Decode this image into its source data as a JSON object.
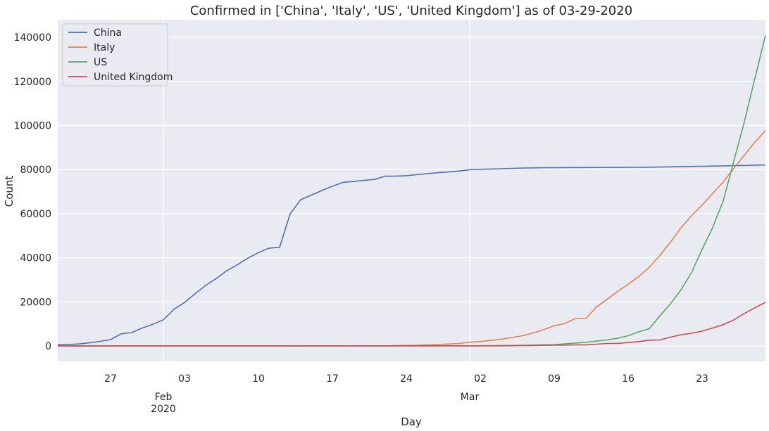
{
  "chart_data": {
    "type": "line",
    "title": "Confirmed in ['China', 'Italy', 'US', 'United Kingdom'] as of 03-29-2020",
    "xlabel": "Day",
    "ylabel": "Count",
    "x_range": [
      "2020-01-22",
      "2020-03-29"
    ],
    "ylim": [
      -7000,
      148000
    ],
    "yticks": [
      0,
      20000,
      40000,
      60000,
      80000,
      100000,
      120000,
      140000
    ],
    "xticks": [
      {
        "date": "2020-01-27",
        "label": "27"
      },
      {
        "date": "2020-02-01",
        "label": "Feb\n2020"
      },
      {
        "date": "2020-02-03",
        "label": "03"
      },
      {
        "date": "2020-02-10",
        "label": "10"
      },
      {
        "date": "2020-02-17",
        "label": "17"
      },
      {
        "date": "2020-02-24",
        "label": "24"
      },
      {
        "date": "2020-03-01",
        "label": "Mar"
      },
      {
        "date": "2020-03-02",
        "label": "02"
      },
      {
        "date": "2020-03-09",
        "label": "09"
      },
      {
        "date": "2020-03-16",
        "label": "16"
      },
      {
        "date": "2020-03-23",
        "label": "23"
      }
    ],
    "grid": true,
    "legend_position": "top-left",
    "series": [
      {
        "name": "China",
        "color": "#4c72b0",
        "points": [
          [
            "2020-01-22",
            548
          ],
          [
            "2020-01-23",
            643
          ],
          [
            "2020-01-24",
            920
          ],
          [
            "2020-01-25",
            1406
          ],
          [
            "2020-01-26",
            2075
          ],
          [
            "2020-01-27",
            2877
          ],
          [
            "2020-01-28",
            5509
          ],
          [
            "2020-01-29",
            6087
          ],
          [
            "2020-01-30",
            8141
          ],
          [
            "2020-01-31",
            9802
          ],
          [
            "2020-02-01",
            11891
          ],
          [
            "2020-02-02",
            16630
          ],
          [
            "2020-02-03",
            19716
          ],
          [
            "2020-02-04",
            23707
          ],
          [
            "2020-02-05",
            27440
          ],
          [
            "2020-02-06",
            30587
          ],
          [
            "2020-02-07",
            34110
          ],
          [
            "2020-02-08",
            36814
          ],
          [
            "2020-02-09",
            39829
          ],
          [
            "2020-02-10",
            42354
          ],
          [
            "2020-02-11",
            44386
          ],
          [
            "2020-02-12",
            44759
          ],
          [
            "2020-02-13",
            59895
          ],
          [
            "2020-02-14",
            66358
          ],
          [
            "2020-02-15",
            68413
          ],
          [
            "2020-02-16",
            70513
          ],
          [
            "2020-02-17",
            72434
          ],
          [
            "2020-02-18",
            74211
          ],
          [
            "2020-02-19",
            74619
          ],
          [
            "2020-02-20",
            75077
          ],
          [
            "2020-02-21",
            75550
          ],
          [
            "2020-02-22",
            77001
          ],
          [
            "2020-02-23",
            77022
          ],
          [
            "2020-02-24",
            77241
          ],
          [
            "2020-02-25",
            77754
          ],
          [
            "2020-02-26",
            78166
          ],
          [
            "2020-02-27",
            78600
          ],
          [
            "2020-02-28",
            78928
          ],
          [
            "2020-02-29",
            79356
          ],
          [
            "2020-03-01",
            79932
          ],
          [
            "2020-03-02",
            80136
          ],
          [
            "2020-03-03",
            80261
          ],
          [
            "2020-03-04",
            80386
          ],
          [
            "2020-03-05",
            80537
          ],
          [
            "2020-03-06",
            80690
          ],
          [
            "2020-03-07",
            80770
          ],
          [
            "2020-03-08",
            80823
          ],
          [
            "2020-03-09",
            80860
          ],
          [
            "2020-03-10",
            80887
          ],
          [
            "2020-03-11",
            80921
          ],
          [
            "2020-03-12",
            80932
          ],
          [
            "2020-03-13",
            80945
          ],
          [
            "2020-03-14",
            80977
          ],
          [
            "2020-03-15",
            81003
          ],
          [
            "2020-03-16",
            81033
          ],
          [
            "2020-03-17",
            81058
          ],
          [
            "2020-03-18",
            81102
          ],
          [
            "2020-03-19",
            81156
          ],
          [
            "2020-03-20",
            81250
          ],
          [
            "2020-03-21",
            81305
          ],
          [
            "2020-03-22",
            81435
          ],
          [
            "2020-03-23",
            81498
          ],
          [
            "2020-03-24",
            81591
          ],
          [
            "2020-03-25",
            81661
          ],
          [
            "2020-03-26",
            81782
          ],
          [
            "2020-03-27",
            81897
          ],
          [
            "2020-03-28",
            81999
          ],
          [
            "2020-03-29",
            82122
          ]
        ]
      },
      {
        "name": "Italy",
        "color": "#dd8452",
        "points": [
          [
            "2020-01-22",
            0
          ],
          [
            "2020-01-31",
            2
          ],
          [
            "2020-02-06",
            3
          ],
          [
            "2020-02-21",
            20
          ],
          [
            "2020-02-22",
            62
          ],
          [
            "2020-02-23",
            155
          ],
          [
            "2020-02-24",
            229
          ],
          [
            "2020-02-25",
            322
          ],
          [
            "2020-02-26",
            453
          ],
          [
            "2020-02-27",
            655
          ],
          [
            "2020-02-28",
            888
          ],
          [
            "2020-02-29",
            1128
          ],
          [
            "2020-03-01",
            1694
          ],
          [
            "2020-03-02",
            2036
          ],
          [
            "2020-03-03",
            2502
          ],
          [
            "2020-03-04",
            3089
          ],
          [
            "2020-03-05",
            3858
          ],
          [
            "2020-03-06",
            4636
          ],
          [
            "2020-03-07",
            5883
          ],
          [
            "2020-03-08",
            7375
          ],
          [
            "2020-03-09",
            9172
          ],
          [
            "2020-03-10",
            10149
          ],
          [
            "2020-03-11",
            12462
          ],
          [
            "2020-03-12",
            12462
          ],
          [
            "2020-03-13",
            17660
          ],
          [
            "2020-03-14",
            21157
          ],
          [
            "2020-03-15",
            24747
          ],
          [
            "2020-03-16",
            27980
          ],
          [
            "2020-03-17",
            31506
          ],
          [
            "2020-03-18",
            35713
          ],
          [
            "2020-03-19",
            41035
          ],
          [
            "2020-03-20",
            47021
          ],
          [
            "2020-03-21",
            53578
          ],
          [
            "2020-03-22",
            59138
          ],
          [
            "2020-03-23",
            63927
          ],
          [
            "2020-03-24",
            69176
          ],
          [
            "2020-03-25",
            74386
          ],
          [
            "2020-03-26",
            80589
          ],
          [
            "2020-03-27",
            86498
          ],
          [
            "2020-03-28",
            92472
          ],
          [
            "2020-03-29",
            97689
          ]
        ]
      },
      {
        "name": "US",
        "color": "#55a868",
        "points": [
          [
            "2020-01-22",
            1
          ],
          [
            "2020-02-22",
            15
          ],
          [
            "2020-03-01",
            74
          ],
          [
            "2020-03-02",
            98
          ],
          [
            "2020-03-03",
            118
          ],
          [
            "2020-03-04",
            149
          ],
          [
            "2020-03-05",
            217
          ],
          [
            "2020-03-06",
            262
          ],
          [
            "2020-03-07",
            402
          ],
          [
            "2020-03-08",
            518
          ],
          [
            "2020-03-09",
            583
          ],
          [
            "2020-03-10",
            959
          ],
          [
            "2020-03-11",
            1281
          ],
          [
            "2020-03-12",
            1663
          ],
          [
            "2020-03-13",
            2179
          ],
          [
            "2020-03-14",
            2727
          ],
          [
            "2020-03-15",
            3499
          ],
          [
            "2020-03-16",
            4632
          ],
          [
            "2020-03-17",
            6421
          ],
          [
            "2020-03-18",
            7786
          ],
          [
            "2020-03-19",
            13680
          ],
          [
            "2020-03-20",
            19101
          ],
          [
            "2020-03-21",
            25493
          ],
          [
            "2020-03-22",
            33276
          ],
          [
            "2020-03-23",
            43847
          ],
          [
            "2020-03-24",
            53740
          ],
          [
            "2020-03-25",
            65778
          ],
          [
            "2020-03-26",
            83836
          ],
          [
            "2020-03-27",
            101657
          ],
          [
            "2020-03-28",
            121478
          ],
          [
            "2020-03-29",
            140886
          ]
        ]
      },
      {
        "name": "United Kingdom",
        "color": "#c44e52",
        "points": [
          [
            "2020-01-22",
            0
          ],
          [
            "2020-02-22",
            9
          ],
          [
            "2020-03-01",
            36
          ],
          [
            "2020-03-02",
            40
          ],
          [
            "2020-03-03",
            51
          ],
          [
            "2020-03-04",
            86
          ],
          [
            "2020-03-05",
            116
          ],
          [
            "2020-03-06",
            164
          ],
          [
            "2020-03-07",
            207
          ],
          [
            "2020-03-08",
            274
          ],
          [
            "2020-03-09",
            322
          ],
          [
            "2020-03-10",
            384
          ],
          [
            "2020-03-11",
            459
          ],
          [
            "2020-03-12",
            459
          ],
          [
            "2020-03-13",
            802
          ],
          [
            "2020-03-14",
            1144
          ],
          [
            "2020-03-15",
            1145
          ],
          [
            "2020-03-16",
            1551
          ],
          [
            "2020-03-17",
            1960
          ],
          [
            "2020-03-18",
            2642
          ],
          [
            "2020-03-19",
            2716
          ],
          [
            "2020-03-20",
            4014
          ],
          [
            "2020-03-21",
            5067
          ],
          [
            "2020-03-22",
            5745
          ],
          [
            "2020-03-23",
            6726
          ],
          [
            "2020-03-24",
            8164
          ],
          [
            "2020-03-25",
            9640
          ],
          [
            "2020-03-26",
            11812
          ],
          [
            "2020-03-27",
            14745
          ],
          [
            "2020-03-28",
            17312
          ],
          [
            "2020-03-29",
            19780
          ]
        ]
      }
    ]
  }
}
